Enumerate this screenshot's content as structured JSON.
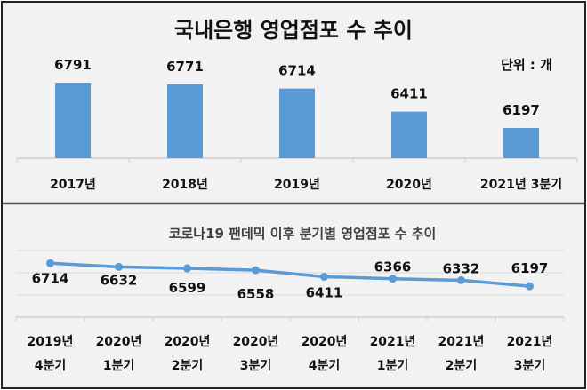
{
  "chart_data": [
    {
      "type": "bar",
      "title": "국내은행 영업점포 수 추이",
      "unit_label": "단위 : 개",
      "categories": [
        "2017년",
        "2018년",
        "2019년",
        "2020년",
        "2021년 3분기"
      ],
      "values": [
        6791,
        6771,
        6714,
        6411,
        6197
      ],
      "ylim": [
        5800,
        7200
      ],
      "grid": false,
      "color": "#5b9bd5"
    },
    {
      "type": "line",
      "title": "코로나19 팬데믹 이후 분기별 영업점포 수 추이",
      "categories": [
        [
          "2019년",
          "4분기"
        ],
        [
          "2020년",
          "1분기"
        ],
        [
          "2020년",
          "2분기"
        ],
        [
          "2020년",
          "3분기"
        ],
        [
          "2020년",
          "4분기"
        ],
        [
          "2021년",
          "1분기"
        ],
        [
          "2021년",
          "2분기"
        ],
        [
          "2021년",
          "3분기"
        ]
      ],
      "values": [
        6714,
        6632,
        6599,
        6558,
        6411,
        6366,
        6332,
        6197
      ],
      "ylim": [
        5500,
        7000
      ],
      "grid": true,
      "color": "#5b9bd5"
    }
  ]
}
